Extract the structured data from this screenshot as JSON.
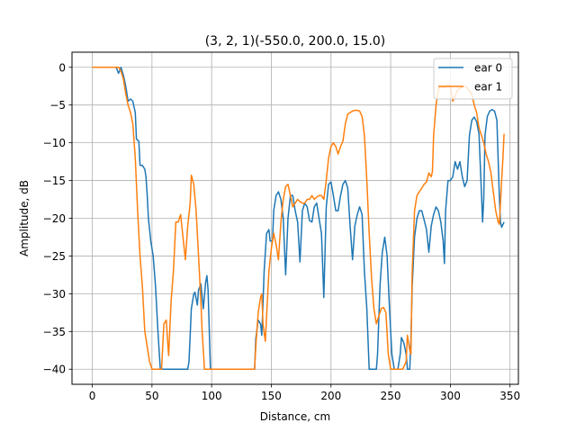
{
  "chart_data": {
    "type": "line",
    "title": "(3, 2, 1)(-550.0, 200.0, 15.0)",
    "xlabel": "Distance, cm",
    "ylabel": "Amplitude, dB",
    "xlim": [
      -17,
      357
    ],
    "ylim": [
      -42,
      2
    ],
    "xticks": [
      0,
      50,
      100,
      150,
      200,
      250,
      300,
      350
    ],
    "yticks": [
      0,
      -5,
      -10,
      -15,
      -20,
      -25,
      -30,
      -35,
      -40
    ],
    "grid": true,
    "legend_position": "top-right",
    "series": [
      {
        "name": "ear 0",
        "color": "#1f77b4",
        "points": [
          [
            0,
            0
          ],
          [
            5,
            0
          ],
          [
            10,
            0
          ],
          [
            15,
            0
          ],
          [
            20,
            0
          ],
          [
            22,
            -0.8
          ],
          [
            24,
            0
          ],
          [
            26,
            -1
          ],
          [
            28,
            -2.5
          ],
          [
            30,
            -4.5
          ],
          [
            32,
            -4.2
          ],
          [
            34,
            -4.5
          ],
          [
            36,
            -6
          ],
          [
            37,
            -9.5
          ],
          [
            39,
            -9.8
          ],
          [
            40,
            -13
          ],
          [
            42,
            -13
          ],
          [
            44,
            -13.5
          ],
          [
            45,
            -14.5
          ],
          [
            46,
            -17
          ],
          [
            47,
            -20
          ],
          [
            49,
            -23
          ],
          [
            51,
            -25
          ],
          [
            53,
            -29
          ],
          [
            55,
            -35
          ],
          [
            57,
            -40
          ],
          [
            60,
            -40
          ],
          [
            65,
            -40
          ],
          [
            70,
            -40
          ],
          [
            75,
            -40
          ],
          [
            80,
            -40
          ],
          [
            81,
            -39
          ],
          [
            83,
            -32
          ],
          [
            85,
            -30
          ],
          [
            86,
            -29.8
          ],
          [
            88,
            -31.5
          ],
          [
            89,
            -29.5
          ],
          [
            91,
            -28.7
          ],
          [
            93,
            -32
          ],
          [
            95,
            -28.5
          ],
          [
            96,
            -27.6
          ],
          [
            97,
            -29.5
          ],
          [
            99,
            -40
          ],
          [
            105,
            -40
          ],
          [
            110,
            -40
          ],
          [
            115,
            -40
          ],
          [
            120,
            -40
          ],
          [
            125,
            -40
          ],
          [
            130,
            -40
          ],
          [
            136,
            -40
          ],
          [
            137,
            -36
          ],
          [
            139,
            -33.5
          ],
          [
            141,
            -34
          ],
          [
            142,
            -35.5
          ],
          [
            144,
            -27
          ],
          [
            146,
            -22
          ],
          [
            148,
            -21.5
          ],
          [
            149,
            -23
          ],
          [
            151,
            -23
          ],
          [
            152,
            -19
          ],
          [
            154,
            -17
          ],
          [
            156,
            -16.5
          ],
          [
            158,
            -17.5
          ],
          [
            160,
            -20
          ],
          [
            162,
            -27.5
          ],
          [
            164,
            -20
          ],
          [
            166,
            -17
          ],
          [
            168,
            -17
          ],
          [
            170,
            -19
          ],
          [
            172,
            -20.5
          ],
          [
            174,
            -25.8
          ],
          [
            176,
            -19
          ],
          [
            178,
            -18
          ],
          [
            180,
            -18.5
          ],
          [
            182,
            -20.3
          ],
          [
            184,
            -20.5
          ],
          [
            186,
            -18.5
          ],
          [
            188,
            -18
          ],
          [
            190,
            -20
          ],
          [
            192,
            -22
          ],
          [
            194,
            -30.5
          ],
          [
            196,
            -18.5
          ],
          [
            198,
            -15.5
          ],
          [
            200,
            -15.2
          ],
          [
            202,
            -17
          ],
          [
            204,
            -19
          ],
          [
            206,
            -19
          ],
          [
            208,
            -17
          ],
          [
            210,
            -15.5
          ],
          [
            212,
            -15
          ],
          [
            214,
            -16
          ],
          [
            216,
            -21
          ],
          [
            218,
            -25.5
          ],
          [
            220,
            -21
          ],
          [
            222,
            -19.5
          ],
          [
            224,
            -18.5
          ],
          [
            226,
            -19.5
          ],
          [
            228,
            -27
          ],
          [
            230,
            -32
          ],
          [
            232,
            -40
          ],
          [
            235,
            -40
          ],
          [
            238,
            -40
          ],
          [
            239,
            -38
          ],
          [
            241,
            -29
          ],
          [
            243,
            -24.5
          ],
          [
            245,
            -22.5
          ],
          [
            247,
            -25
          ],
          [
            249,
            -32
          ],
          [
            251,
            -38
          ],
          [
            253,
            -40
          ],
          [
            256,
            -40
          ],
          [
            258,
            -38
          ],
          [
            259,
            -35.8
          ],
          [
            261,
            -36.5
          ],
          [
            263,
            -38
          ],
          [
            264,
            -40
          ],
          [
            266,
            -40
          ],
          [
            267,
            -36
          ],
          [
            268,
            -29
          ],
          [
            270,
            -22.5
          ],
          [
            272,
            -20
          ],
          [
            274,
            -19
          ],
          [
            276,
            -19
          ],
          [
            278,
            -20.2
          ],
          [
            280,
            -21.5
          ],
          [
            282,
            -24.5
          ],
          [
            284,
            -21
          ],
          [
            286,
            -19.5
          ],
          [
            288,
            -18.5
          ],
          [
            290,
            -19
          ],
          [
            292,
            -20.5
          ],
          [
            294,
            -23
          ],
          [
            295,
            -26
          ],
          [
            296,
            -19
          ],
          [
            298,
            -15
          ],
          [
            300,
            -15
          ],
          [
            302,
            -14.5
          ],
          [
            304,
            -12.5
          ],
          [
            306,
            -13.5
          ],
          [
            308,
            -12.5
          ],
          [
            310,
            -14.5
          ],
          [
            312,
            -15.8
          ],
          [
            314,
            -15
          ],
          [
            316,
            -9
          ],
          [
            318,
            -7
          ],
          [
            320,
            -6.6
          ],
          [
            322,
            -7.2
          ],
          [
            324,
            -8.8
          ],
          [
            326,
            -16.5
          ],
          [
            327,
            -20.5
          ],
          [
            328,
            -17.5
          ],
          [
            329,
            -9
          ],
          [
            331,
            -6.5
          ],
          [
            333,
            -5.8
          ],
          [
            335,
            -5.6
          ],
          [
            337,
            -5.8
          ],
          [
            339,
            -7
          ],
          [
            341,
            -17
          ],
          [
            342,
            -20.5
          ],
          [
            343,
            -21.2
          ],
          [
            345,
            -20.5
          ]
        ]
      },
      {
        "name": "ear 1",
        "color": "#ff7f0e",
        "points": [
          [
            0,
            0
          ],
          [
            5,
            0
          ],
          [
            10,
            0
          ],
          [
            15,
            0
          ],
          [
            20,
            0
          ],
          [
            22,
            0
          ],
          [
            24,
            -0.5
          ],
          [
            26,
            -1.5
          ],
          [
            28,
            -3.5
          ],
          [
            30,
            -5
          ],
          [
            32,
            -6
          ],
          [
            34,
            -7.5
          ],
          [
            36,
            -12
          ],
          [
            38,
            -19
          ],
          [
            40,
            -25
          ],
          [
            42,
            -29
          ],
          [
            44,
            -35
          ],
          [
            46,
            -37
          ],
          [
            48,
            -39
          ],
          [
            50,
            -40
          ],
          [
            55,
            -40
          ],
          [
            58,
            -40
          ],
          [
            60,
            -34
          ],
          [
            62,
            -33.5
          ],
          [
            63,
            -36
          ],
          [
            64,
            -38.2
          ],
          [
            66,
            -31
          ],
          [
            68,
            -27
          ],
          [
            70,
            -20.5
          ],
          [
            72,
            -20.5
          ],
          [
            74,
            -19.5
          ],
          [
            76,
            -22.5
          ],
          [
            78,
            -25.5
          ],
          [
            80,
            -21
          ],
          [
            82,
            -18
          ],
          [
            83,
            -14.3
          ],
          [
            85,
            -15.5
          ],
          [
            87,
            -19
          ],
          [
            89,
            -25
          ],
          [
            91,
            -31
          ],
          [
            92,
            -35
          ],
          [
            94,
            -40
          ],
          [
            100,
            -40
          ],
          [
            110,
            -40
          ],
          [
            120,
            -40
          ],
          [
            130,
            -40
          ],
          [
            136,
            -40
          ],
          [
            137,
            -37
          ],
          [
            139,
            -32.5
          ],
          [
            141,
            -30.5
          ],
          [
            142,
            -30
          ],
          [
            143,
            -34
          ],
          [
            145,
            -36.3
          ],
          [
            147,
            -30
          ],
          [
            148,
            -27
          ],
          [
            150,
            -24
          ],
          [
            152,
            -22
          ],
          [
            154,
            -23.5
          ],
          [
            156,
            -25.5
          ],
          [
            158,
            -20.5
          ],
          [
            160,
            -17.5
          ],
          [
            162,
            -15.8
          ],
          [
            164,
            -15.5
          ],
          [
            166,
            -17
          ],
          [
            168,
            -18.5
          ],
          [
            170,
            -18
          ],
          [
            172,
            -17.5
          ],
          [
            174,
            -17.8
          ],
          [
            176,
            -18
          ],
          [
            178,
            -18
          ],
          [
            180,
            -17.5
          ],
          [
            182,
            -17.5
          ],
          [
            184,
            -17
          ],
          [
            186,
            -17.5
          ],
          [
            188,
            -17.2
          ],
          [
            190,
            -17
          ],
          [
            192,
            -17
          ],
          [
            194,
            -17.5
          ],
          [
            196,
            -15
          ],
          [
            198,
            -12
          ],
          [
            200,
            -10.5
          ],
          [
            202,
            -10
          ],
          [
            204,
            -10.5
          ],
          [
            206,
            -11.5
          ],
          [
            208,
            -10.5
          ],
          [
            210,
            -9.8
          ],
          [
            212,
            -7.5
          ],
          [
            214,
            -6.2
          ],
          [
            216,
            -6.0
          ],
          [
            218,
            -5.8
          ],
          [
            220,
            -5.7
          ],
          [
            222,
            -5.7
          ],
          [
            224,
            -5.8
          ],
          [
            226,
            -6.5
          ],
          [
            228,
            -9
          ],
          [
            230,
            -15
          ],
          [
            232,
            -22
          ],
          [
            234,
            -28
          ],
          [
            236,
            -32
          ],
          [
            238,
            -34
          ],
          [
            240,
            -33
          ],
          [
            242,
            -32
          ],
          [
            244,
            -31.8
          ],
          [
            246,
            -32.5
          ],
          [
            248,
            -38
          ],
          [
            250,
            -40
          ],
          [
            255,
            -40
          ],
          [
            260,
            -40
          ],
          [
            263,
            -39
          ],
          [
            264,
            -35.5
          ],
          [
            266,
            -37.5
          ],
          [
            267,
            -38
          ],
          [
            268,
            -27
          ],
          [
            270,
            -19
          ],
          [
            272,
            -17
          ],
          [
            274,
            -16.5
          ],
          [
            276,
            -16
          ],
          [
            278,
            -15.5
          ],
          [
            280,
            -15.2
          ],
          [
            282,
            -14
          ],
          [
            284,
            -14.5
          ],
          [
            285,
            -13.8
          ],
          [
            286,
            -9
          ],
          [
            288,
            -5
          ],
          [
            290,
            -3
          ],
          [
            292,
            -2.5
          ],
          [
            294,
            -2.7
          ],
          [
            296,
            -2.6
          ],
          [
            298,
            -2.3
          ],
          [
            300,
            -2.6
          ],
          [
            302,
            -4.5
          ],
          [
            304,
            -3.8
          ],
          [
            306,
            -3
          ],
          [
            308,
            -2.8
          ],
          [
            310,
            -2.6
          ],
          [
            312,
            -2.5
          ],
          [
            314,
            -2.7
          ],
          [
            316,
            -3.2
          ],
          [
            318,
            -3.6
          ],
          [
            320,
            -5
          ],
          [
            322,
            -6
          ],
          [
            324,
            -8
          ],
          [
            326,
            -9
          ],
          [
            328,
            -10
          ],
          [
            330,
            -11.5
          ],
          [
            332,
            -12.5
          ],
          [
            334,
            -14
          ],
          [
            336,
            -16.5
          ],
          [
            338,
            -19
          ],
          [
            340,
            -20.5
          ],
          [
            341,
            -20.8
          ],
          [
            342,
            -18
          ],
          [
            343,
            -15
          ],
          [
            344,
            -12
          ],
          [
            345,
            -8.8
          ]
        ]
      }
    ]
  }
}
